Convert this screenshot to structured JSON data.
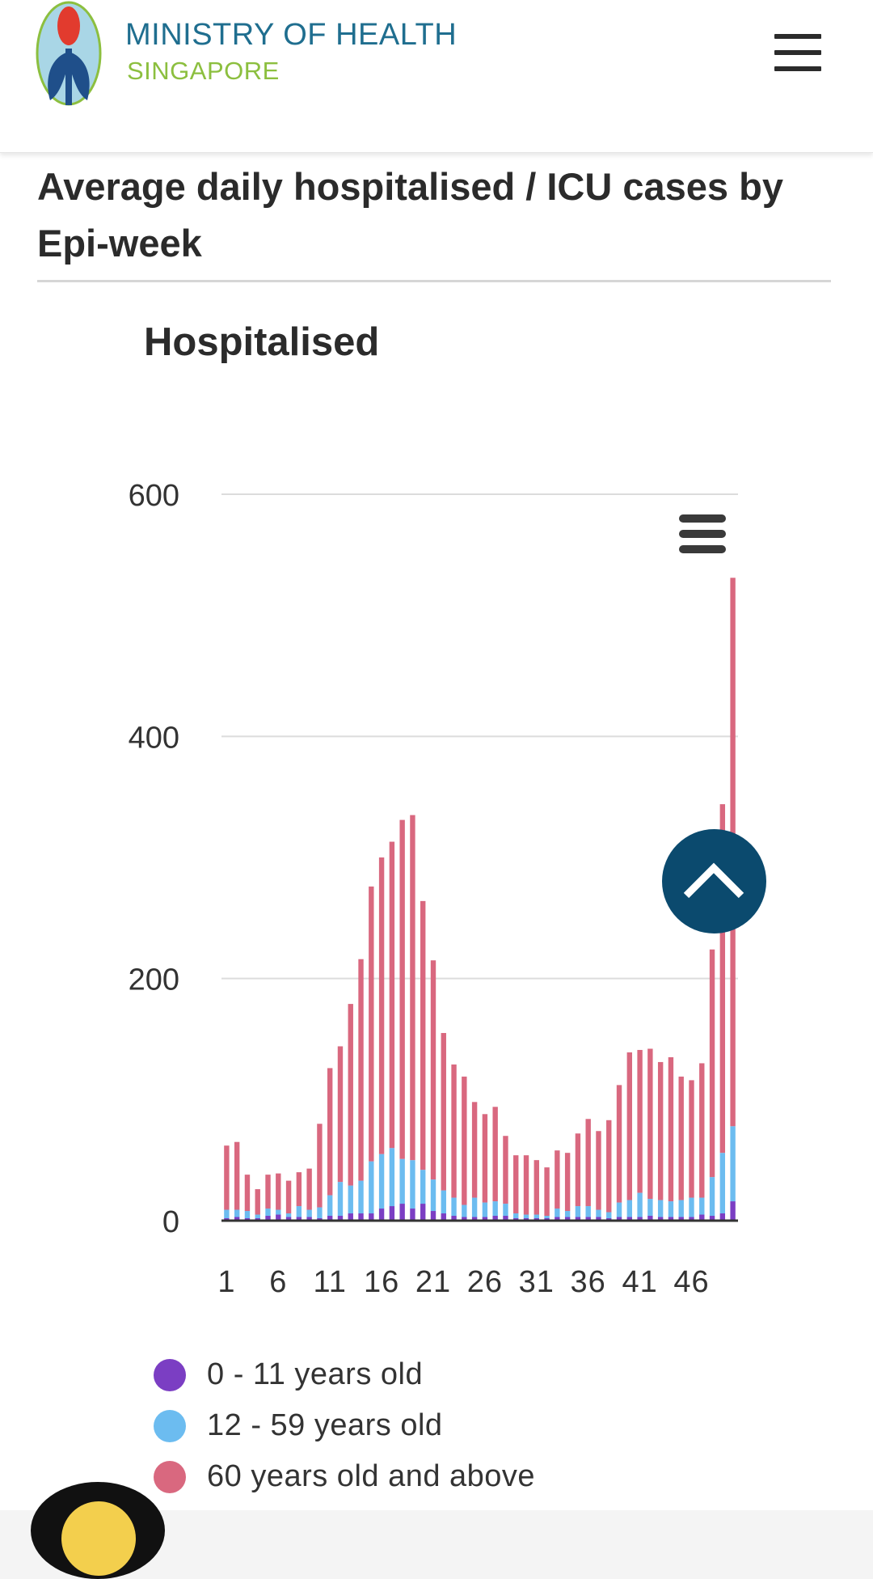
{
  "header": {
    "brand_line1": "MINISTRY OF HEALTH",
    "brand_line2": "SINGAPORE",
    "logo_icon": "moh-logo-icon",
    "menu_icon": "hamburger-menu-icon"
  },
  "section": {
    "title": "Average daily hospitalised / ICU cases by Epi-week"
  },
  "chart": {
    "menu_icon": "chart-menu-icon",
    "scroll_top_icon": "chevron-up-icon"
  },
  "colors": {
    "age_0_11": "#7b3ec3",
    "age_12_59": "#6cbcf0",
    "age_60_plus": "#d9687f",
    "brand_blue": "#1f6e8f",
    "brand_green": "#8cbf3f",
    "scroll_button": "#0b4a6e"
  },
  "chart_data": {
    "type": "bar",
    "stacked": true,
    "title": "Hospitalised",
    "xlabel": "",
    "ylabel": "",
    "ylim": [
      0,
      600
    ],
    "y_ticks": [
      0,
      200,
      400,
      600
    ],
    "x_tick_labels": [
      "1",
      "6",
      "11",
      "16",
      "21",
      "26",
      "31",
      "36",
      "41",
      "46"
    ],
    "grid": true,
    "legend_position": "bottom",
    "categories": [
      1,
      2,
      3,
      4,
      5,
      6,
      7,
      8,
      9,
      10,
      11,
      12,
      13,
      14,
      15,
      16,
      17,
      18,
      19,
      20,
      21,
      22,
      23,
      24,
      25,
      26,
      27,
      28,
      29,
      30,
      31,
      32,
      33,
      34,
      35,
      36,
      37,
      38,
      39,
      40,
      41,
      42,
      43,
      44,
      45,
      46,
      47,
      48,
      49,
      50
    ],
    "series": [
      {
        "name": "0 - 11 years old",
        "values": [
          2,
          3,
          2,
          2,
          4,
          5,
          3,
          3,
          3,
          2,
          4,
          4,
          6,
          6,
          6,
          10,
          12,
          14,
          10,
          14,
          8,
          6,
          4,
          3,
          3,
          3,
          4,
          4,
          2,
          2,
          2,
          2,
          3,
          3,
          3,
          3,
          3,
          2,
          3,
          3,
          3,
          4,
          3,
          3,
          3,
          3,
          5,
          4,
          6,
          16
        ]
      },
      {
        "name": "12 - 59 years old",
        "values": [
          7,
          6,
          6,
          3,
          6,
          4,
          3,
          9,
          6,
          9,
          17,
          28,
          23,
          27,
          43,
          45,
          48,
          37,
          40,
          28,
          26,
          19,
          15,
          10,
          16,
          12,
          12,
          10,
          4,
          3,
          3,
          2,
          7,
          5,
          9,
          9,
          6,
          5,
          12,
          14,
          20,
          14,
          14,
          13,
          14,
          16,
          14,
          32,
          50,
          62
        ]
      },
      {
        "name": "60 years old and above",
        "values": [
          53,
          56,
          30,
          21,
          28,
          30,
          27,
          28,
          34,
          69,
          105,
          112,
          150,
          183,
          227,
          245,
          253,
          280,
          285,
          222,
          181,
          130,
          110,
          106,
          79,
          73,
          78,
          56,
          48,
          49,
          45,
          40,
          48,
          48,
          60,
          72,
          65,
          76,
          97,
          122,
          118,
          124,
          114,
          119,
          102,
          97,
          111,
          188,
          288,
          453
        ]
      }
    ]
  }
}
